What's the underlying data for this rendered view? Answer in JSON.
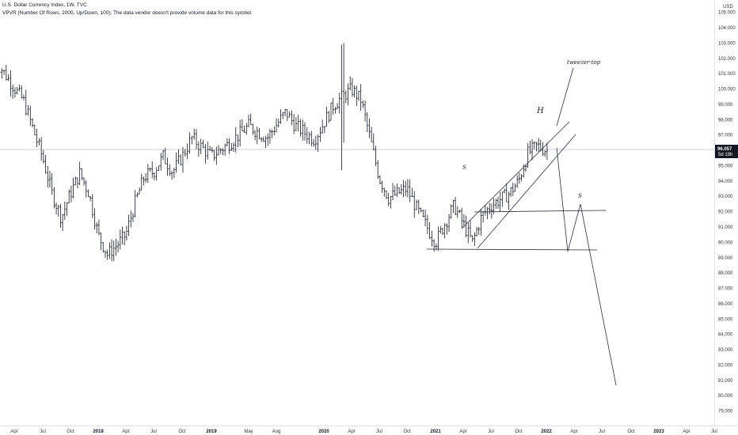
{
  "header": {
    "title_line": "U.S. Dollar Currency Index, 1W, TVC",
    "indicator_line": "VPVR (Number Of Rows, 2000, Up/Down, 100): The data vendor doesn't provide volume data for this symbol."
  },
  "price_scale": {
    "currency": "USD",
    "current_price": "96.057",
    "countdown": "5d 19h"
  },
  "annotations": {
    "tweezer_top": "tweezer-top",
    "left_shoulder": "S",
    "head": "H",
    "right_shoulder": "S"
  },
  "chart_data": {
    "type": "ohlc",
    "title": "U.S. Dollar Currency Index, 1W, TVC",
    "xlabel": "",
    "ylabel": "",
    "ylim": [
      78.5,
      105.5
    ],
    "y_ticks": [
      "79.000",
      "80.000",
      "81.000",
      "82.000",
      "83.000",
      "84.000",
      "85.000",
      "86.000",
      "87.000",
      "88.000",
      "89.000",
      "90.000",
      "91.000",
      "92.000",
      "93.000",
      "94.000",
      "95.000",
      "96.000",
      "97.000",
      "98.000",
      "99.000",
      "100.000",
      "101.000",
      "102.000",
      "103.000",
      "104.000",
      "105.000"
    ],
    "x_ticks": [
      "Apr",
      "Jul",
      "Oct",
      "2018",
      "Apr",
      "Jul",
      "Oct",
      "2019",
      "May",
      "Aug",
      "2020",
      "Apr",
      "Jul",
      "Oct",
      "2021",
      "Apr",
      "Jul",
      "Oct",
      "2022",
      "Apr",
      "Jul",
      "Oct",
      "2023",
      "Apr",
      "Jul"
    ],
    "year_ticks": [
      "2018",
      "2019",
      "2020",
      "2021",
      "2022",
      "2023"
    ],
    "last_price": 96.057,
    "grid": false,
    "anchors": [
      {
        "x": "2017-02",
        "y": 101.9
      },
      {
        "x": "2017-03",
        "y": 101.0
      },
      {
        "x": "2017-05",
        "y": 99.2
      },
      {
        "x": "2017-07",
        "y": 95.5
      },
      {
        "x": "2017-08",
        "y": 93.2
      },
      {
        "x": "2017-09",
        "y": 91.6
      },
      {
        "x": "2017-10",
        "y": 93.2
      },
      {
        "x": "2017-11",
        "y": 94.5
      },
      {
        "x": "2017-12",
        "y": 93.2
      },
      {
        "x": "2018-01",
        "y": 90.5
      },
      {
        "x": "2018-02",
        "y": 89.2
      },
      {
        "x": "2018-03",
        "y": 89.8
      },
      {
        "x": "2018-04",
        "y": 90.5
      },
      {
        "x": "2018-05",
        "y": 92.6
      },
      {
        "x": "2018-06",
        "y": 94.3
      },
      {
        "x": "2018-07",
        "y": 94.6
      },
      {
        "x": "2018-08",
        "y": 95.6
      },
      {
        "x": "2018-09",
        "y": 94.6
      },
      {
        "x": "2018-10",
        "y": 95.6
      },
      {
        "x": "2018-11",
        "y": 96.8
      },
      {
        "x": "2019-01",
        "y": 95.6
      },
      {
        "x": "2019-03",
        "y": 96.5
      },
      {
        "x": "2019-05",
        "y": 97.6
      },
      {
        "x": "2019-07",
        "y": 96.8
      },
      {
        "x": "2019-09",
        "y": 98.5
      },
      {
        "x": "2019-10",
        "y": 97.6
      },
      {
        "x": "2019-12",
        "y": 96.7
      },
      {
        "x": "2020-02",
        "y": 98.9
      },
      {
        "x": "2020-03",
        "y": 99.5
      },
      {
        "x": "2020-04",
        "y": 100.0
      },
      {
        "x": "2020-05",
        "y": 99.3
      },
      {
        "x": "2020-06",
        "y": 96.8
      },
      {
        "x": "2020-07",
        "y": 94.2
      },
      {
        "x": "2020-08",
        "y": 92.9
      },
      {
        "x": "2020-10",
        "y": 93.5
      },
      {
        "x": "2020-11",
        "y": 92.2
      },
      {
        "x": "2021-01",
        "y": 90.0
      },
      {
        "x": "2021-03",
        "y": 92.4
      },
      {
        "x": "2021-04",
        "y": 91.2
      },
      {
        "x": "2021-05",
        "y": 90.0
      },
      {
        "x": "2021-06",
        "y": 91.7
      },
      {
        "x": "2021-07",
        "y": 92.4
      },
      {
        "x": "2021-09",
        "y": 93.2
      },
      {
        "x": "2021-10",
        "y": 94.0
      },
      {
        "x": "2021-11",
        "y": 95.8
      },
      {
        "x": "2021-12",
        "y": 96.3
      },
      {
        "x": "2022-01",
        "y": 96.0
      }
    ]
  }
}
